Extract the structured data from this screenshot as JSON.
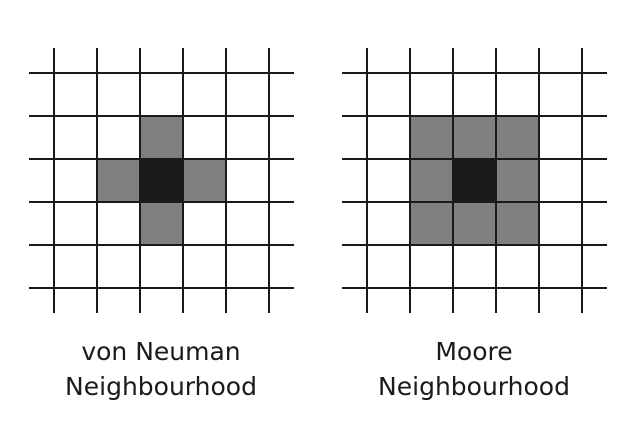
{
  "colors": {
    "background": "#ffffff",
    "grid_line": "#1a1a1a",
    "center_cell": "#1a1a1a",
    "neighbor_cell": "#808080"
  },
  "grid": {
    "rows": 5,
    "cols": 5,
    "center": [
      2,
      2
    ]
  },
  "diagrams": [
    {
      "id": "von-neumann",
      "caption_line1": "von Neuman",
      "caption_line2": "Neighbourhood",
      "neighbors": [
        [
          1,
          2
        ],
        [
          2,
          1
        ],
        [
          2,
          3
        ],
        [
          3,
          2
        ]
      ]
    },
    {
      "id": "moore",
      "caption_line1": "Moore",
      "caption_line2": "Neighbourhood",
      "neighbors": [
        [
          1,
          1
        ],
        [
          1,
          2
        ],
        [
          1,
          3
        ],
        [
          2,
          1
        ],
        [
          2,
          3
        ],
        [
          3,
          1
        ],
        [
          3,
          2
        ],
        [
          3,
          3
        ]
      ]
    }
  ]
}
